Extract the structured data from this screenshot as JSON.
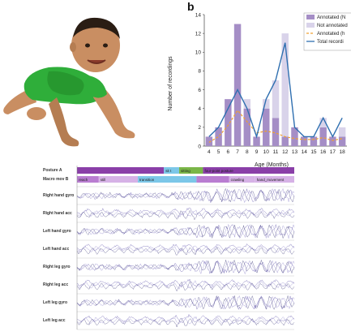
{
  "panel_letter": "b",
  "chart_data": {
    "type": "bar",
    "categories": [
      "4",
      "5",
      "6",
      "7",
      "8",
      "9",
      "10",
      "11",
      "12",
      "13",
      "14",
      "15",
      "16",
      "17",
      "18"
    ],
    "xlabel": "Age (Months)",
    "ylabel": "Number of recordings",
    "ylim": [
      0,
      14
    ],
    "yticks": [
      0,
      2,
      4,
      6,
      8,
      10,
      12,
      14
    ],
    "xtick_labels_visible": [
      "4",
      "5",
      "6",
      "7",
      "8",
      "9",
      "10",
      "11",
      "12",
      "13",
      "14",
      "15",
      "16",
      "17",
      "18"
    ],
    "legend_placement": "top-right",
    "series": [
      {
        "name": "Annotated (N",
        "type": "bar",
        "color": "#a58ec6",
        "values": [
          1,
          2,
          5,
          13,
          4,
          1,
          4,
          3,
          1,
          2,
          1,
          1,
          2,
          1,
          1
        ]
      },
      {
        "name": "Not annotated",
        "type": "bar",
        "color": "#d9d3ea",
        "values": [
          0,
          0,
          0,
          0,
          1,
          0,
          1,
          4,
          11,
          0,
          0,
          0,
          1,
          0,
          1
        ]
      },
      {
        "name": "Annotated (h",
        "type": "line-dashed",
        "color": "#f0a030",
        "values": [
          0.4,
          1.0,
          2.2,
          3.8,
          2.6,
          1.4,
          1.6,
          1.4,
          1.0,
          0.8,
          0.7,
          0.7,
          0.9,
          0.6,
          0.8
        ]
      },
      {
        "name": "Total recordi",
        "type": "line",
        "color": "#2f6fb0",
        "values": [
          1,
          2,
          4,
          6,
          4,
          1,
          5,
          7,
          11,
          2,
          1,
          1,
          3,
          1,
          3
        ]
      }
    ]
  },
  "sensor_panel": {
    "macro_rows": [
      {
        "label": "Posture A",
        "segments": [
          {
            "label": "",
            "color": "#8a3fa8",
            "start": 0.0,
            "end": 0.4
          },
          {
            "label": "sit t",
            "color": "#7cc7e8",
            "start": 0.4,
            "end": 0.47
          },
          {
            "label": "sitting",
            "color": "#7ab648",
            "start": 0.47,
            "end": 0.58
          },
          {
            "label": "four-point posture",
            "color": "#8a3fa8",
            "start": 0.58,
            "end": 1.0
          }
        ]
      },
      {
        "label": "Macro mov B",
        "segments": [
          {
            "label": "reach",
            "color": "#b97dd1",
            "start": 0.0,
            "end": 0.1
          },
          {
            "label": "still",
            "color": "#d6b2e6",
            "start": 0.1,
            "end": 0.28
          },
          {
            "label": "transition",
            "color": "#7cc7e8",
            "start": 0.28,
            "end": 0.55
          },
          {
            "label": "",
            "color": "#b97dd1",
            "start": 0.55,
            "end": 0.7
          },
          {
            "label": "crawling",
            "color": "#d6b2e6",
            "start": 0.7,
            "end": 0.82
          },
          {
            "label": "hand_movement",
            "color": "#d6b2e6",
            "start": 0.82,
            "end": 1.0
          }
        ]
      }
    ],
    "signal_rows": [
      {
        "label": "Right hand gyro"
      },
      {
        "label": "Right hand acc"
      },
      {
        "label": "Left hand gyro"
      },
      {
        "label": "Left hand acc"
      },
      {
        "label": "Right leg gyro"
      },
      {
        "label": "Right leg acc"
      },
      {
        "label": "Left leg gyro"
      },
      {
        "label": "Left leg acc"
      }
    ]
  }
}
